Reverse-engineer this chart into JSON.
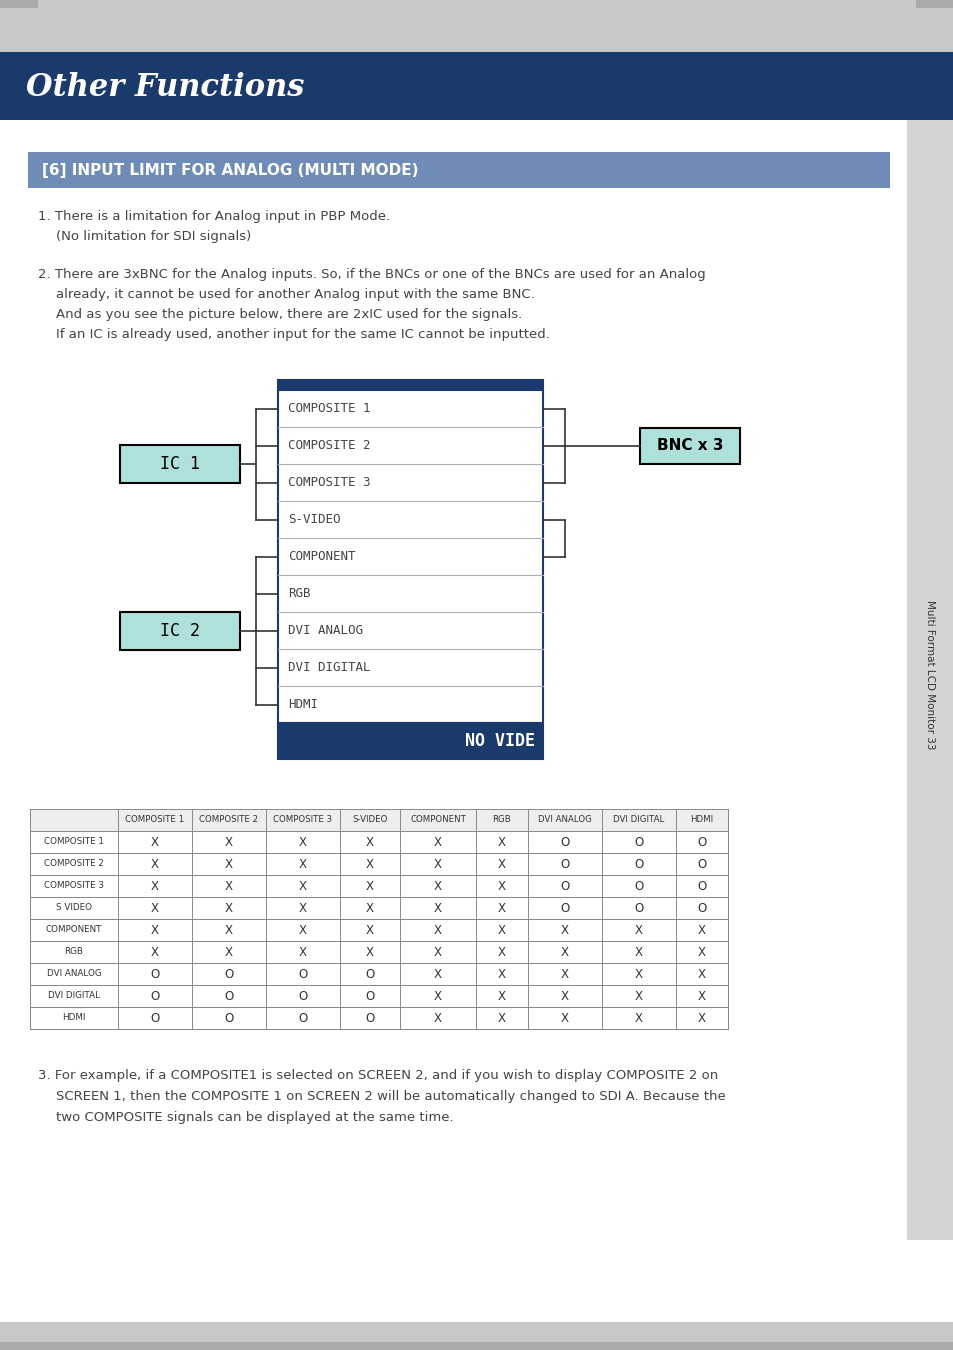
{
  "title": "Other Functions",
  "title_bg": "#1a3a6b",
  "title_color": "#ffffff",
  "section_title": "[6] INPUT LIMIT FOR ANALOG (MULTI MODE)",
  "section_bg": "#6e8cb5",
  "section_color": "#ffffff",
  "page_bg": "#ffffff",
  "body_text_color": "#444444",
  "para1_line1": "1. There is a limitation for Analog input in PBP Mode.",
  "para1_line2": "(No limitation for SDI signals)",
  "para2_line1": "2. There are 3xBNC for the Analog inputs. So, if the BNCs or one of the BNCs are used for an Analog",
  "para2_line2": "already, it cannot be used for another Analog input with the same BNC.",
  "para2_line3": "And as you see the picture below, there are 2xIC used for the signals.",
  "para2_line4": "If an IC is already used, another input for the same IC cannot be inputted.",
  "diagram_signals": [
    "COMPOSITE 1",
    "COMPOSITE 2",
    "COMPOSITE 3",
    "S-VIDEO",
    "COMPONENT",
    "RGB",
    "DVI ANALOG",
    "DVI DIGITAL",
    "HDMI"
  ],
  "diagram_footer": "NO VIDE",
  "ic1_label": "IC 1",
  "ic2_label": "IC 2",
  "bnc_label": "BNC x 3",
  "ic_fill": "#aee0dc",
  "ic_edge": "#000000",
  "bnc_fill": "#aee0dc",
  "bnc_edge": "#000000",
  "diagram_box_edge": "#1a3a6b",
  "diagram_header_bg": "#1a3a6b",
  "diagram_footer_bg": "#1a3a6b",
  "diagram_footer_color": "#ffffff",
  "table_cols": [
    "",
    "COMPOSITE 1",
    "COMPOSITE 2",
    "COMPOSITE 3",
    "S-VIDEO",
    "COMPONENT",
    "RGB",
    "DVI ANALOG",
    "DVI DIGITAL",
    "HDMI"
  ],
  "table_rows": [
    [
      "COMPOSITE 1",
      "X",
      "X",
      "X",
      "X",
      "X",
      "X",
      "O",
      "O",
      "O"
    ],
    [
      "COMPOSITE 2",
      "X",
      "X",
      "X",
      "X",
      "X",
      "X",
      "O",
      "O",
      "O"
    ],
    [
      "COMPOSITE 3",
      "X",
      "X",
      "X",
      "X",
      "X",
      "X",
      "O",
      "O",
      "O"
    ],
    [
      "S VIDEO",
      "X",
      "X",
      "X",
      "X",
      "X",
      "X",
      "O",
      "O",
      "O"
    ],
    [
      "COMPONENT",
      "X",
      "X",
      "X",
      "X",
      "X",
      "X",
      "X",
      "X",
      "X"
    ],
    [
      "RGB",
      "X",
      "X",
      "X",
      "X",
      "X",
      "X",
      "X",
      "X",
      "X"
    ],
    [
      "DVI ANALOG",
      "O",
      "O",
      "O",
      "O",
      "X",
      "X",
      "X",
      "X",
      "X"
    ],
    [
      "DVI DIGITAL",
      "O",
      "O",
      "O",
      "O",
      "X",
      "X",
      "X",
      "X",
      "X"
    ],
    [
      "HDMI",
      "O",
      "O",
      "O",
      "O",
      "X",
      "X",
      "X",
      "X",
      "X"
    ]
  ],
  "para3_line1": "3. For example, if a COMPOSITE1 is selected on SCREEN 2, and if you wish to display COMPOSITE 2 on",
  "para3_line2": "SCREEN 1, then the COMPOSITE 1 on SCREEN 2 will be automatically changed to SDI A. Because the",
  "para3_line3": "two COMPOSITE signals can be displayed at the same time.",
  "sidebar_text": "Multi Format LCD Monitor 33",
  "sidebar_bg": "#d4d4d4"
}
